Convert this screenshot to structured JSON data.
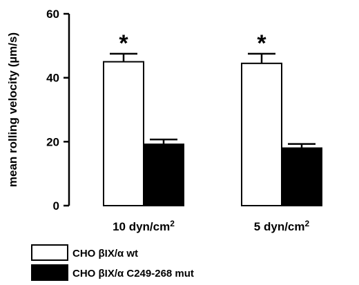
{
  "chart_data": {
    "type": "bar",
    "title": "",
    "xlabel": "",
    "ylabel": "mean rolling velocity (µm/s)",
    "ylim": [
      0,
      60
    ],
    "yticks": [
      0,
      20,
      40,
      60
    ],
    "grid": false,
    "legend_position": "bottom-left",
    "categories": [
      {
        "label": "10 dyn/cm",
        "superscript": "2"
      },
      {
        "label": "5 dyn/cm",
        "superscript": "2"
      }
    ],
    "series": [
      {
        "name": "CHO βIX/α wt",
        "color": "#ffffff",
        "values": [
          45,
          44.5
        ],
        "errors": [
          2.5,
          3
        ]
      },
      {
        "name": "CHO βIX/α C249-268 mut",
        "color": "#000000",
        "values": [
          19.2,
          18
        ],
        "errors": [
          1.5,
          1.3
        ]
      }
    ],
    "annotations": [
      {
        "text": "*",
        "category": 0,
        "series": 0
      },
      {
        "text": "*",
        "category": 1,
        "series": 0
      }
    ]
  }
}
